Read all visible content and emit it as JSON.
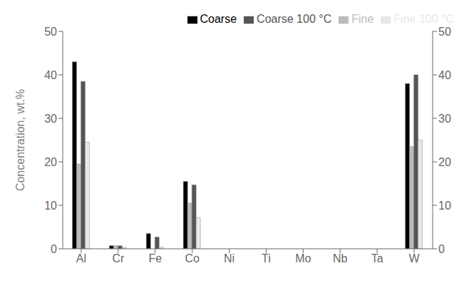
{
  "chart_data": {
    "type": "bar",
    "categories": [
      "Al",
      "Cr",
      "Fe",
      "Co",
      "Ni",
      "Ti",
      "Mo",
      "Nb",
      "Ta",
      "W"
    ],
    "series": [
      {
        "name": "Coarse",
        "color": "#000000",
        "values": [
          43,
          0.7,
          3.5,
          15.5,
          0,
          0,
          0,
          0,
          0,
          38
        ]
      },
      {
        "name": "Fine",
        "color": "#bbbbbb",
        "values": [
          19.5,
          0.7,
          0,
          10.5,
          0,
          0,
          0,
          0,
          0,
          23.5
        ]
      },
      {
        "name": "Coarse 100 °C",
        "color": "#555555",
        "values": [
          38.5,
          0.7,
          2.7,
          14.7,
          0,
          0,
          0,
          0,
          0,
          40
        ]
      },
      {
        "name": "Fine 100 °C",
        "color": "#e8e8e8",
        "values": [
          24.5,
          0.3,
          0.4,
          7.2,
          0,
          0,
          0,
          0,
          0,
          25
        ]
      }
    ],
    "ylabel": "Concentration, wt.%",
    "ylim": [
      0,
      50
    ],
    "yticks": [
      0,
      10,
      20,
      30,
      40,
      50
    ],
    "y2lim": [
      0,
      50
    ],
    "y2ticks": [
      0,
      10,
      20,
      30,
      40,
      50
    ],
    "legend": "upper right",
    "grid": false
  }
}
